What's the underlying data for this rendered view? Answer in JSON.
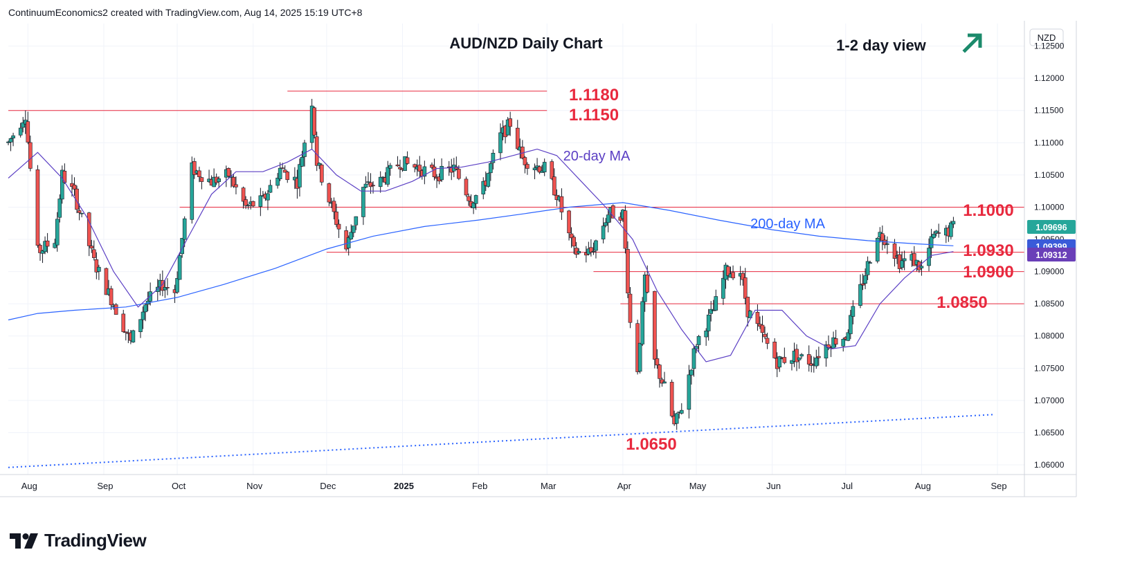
{
  "header": {
    "attribution": "ContinuumEconomics2 created with TradingView.com, Aug 14, 2025 15:19 UTC+8"
  },
  "footer": {
    "brand": "TradingView"
  },
  "chart_data": {
    "type": "candlestick",
    "title": "AUD/NZD Daily Chart",
    "view_label": "1-2 day view",
    "view_direction": "up",
    "currency": "NZD",
    "y_range": [
      1.0585,
      1.1285
    ],
    "y_ticks": [
      "1.06000",
      "1.06500",
      "1.07000",
      "1.07500",
      "1.08000",
      "1.08500",
      "1.09000",
      "1.09500",
      "1.10000",
      "1.10500",
      "1.11000",
      "1.11500",
      "1.12000",
      "1.12500"
    ],
    "x_range": [
      "2024-07-24",
      "2025-09-12"
    ],
    "x_ticks": [
      {
        "label": "Aug",
        "date": "2024-08-01"
      },
      {
        "label": "Sep",
        "date": "2024-09-01"
      },
      {
        "label": "Oct",
        "date": "2024-10-01"
      },
      {
        "label": "Nov",
        "date": "2024-11-01"
      },
      {
        "label": "Dec",
        "date": "2024-12-01"
      },
      {
        "label": "2025",
        "date": "2025-01-01",
        "bold": true
      },
      {
        "label": "Feb",
        "date": "2025-02-01"
      },
      {
        "label": "Mar",
        "date": "2025-03-01"
      },
      {
        "label": "Apr",
        "date": "2025-04-01"
      },
      {
        "label": "May",
        "date": "2025-05-01"
      },
      {
        "label": "Jun",
        "date": "2025-06-01"
      },
      {
        "label": "Jul",
        "date": "2025-07-01"
      },
      {
        "label": "Aug",
        "date": "2025-08-01"
      },
      {
        "label": "Sep",
        "date": "2025-09-01"
      }
    ],
    "price_labels": [
      {
        "text": "1.09696",
        "value": 1.09696,
        "color": "#26a69a"
      },
      {
        "text": "1.09399",
        "value": 1.09399,
        "color": "#3a5bd9"
      },
      {
        "text": "1.09312",
        "value": 1.09312,
        "color": "#6a3fb8"
      }
    ],
    "levels": [
      {
        "label": "1.1180",
        "value": 1.118,
        "from": "2024-11-15",
        "to": "2025-03-01"
      },
      {
        "label": "1.1150",
        "value": 1.115,
        "from": "2024-07-24",
        "to": "2025-03-01"
      },
      {
        "label": "1.1000",
        "value": 1.1,
        "from": "2024-10-02",
        "to": "2025-09-12"
      },
      {
        "label": "1.0930",
        "value": 1.093,
        "from": "2024-12-01",
        "to": "2025-09-12"
      },
      {
        "label": "1.0900",
        "value": 1.09,
        "from": "2025-03-20",
        "to": "2025-09-12"
      },
      {
        "label": "1.0850",
        "value": 1.085,
        "from": "2025-03-31",
        "to": "2025-09-12"
      }
    ],
    "annotations": [
      {
        "text": "20-day MA",
        "color": "#5b3fc4"
      },
      {
        "text": "200-day MA",
        "color": "#2962ff"
      },
      {
        "text": "1.0650",
        "color": "#e8293e"
      }
    ],
    "trendline": {
      "points": [
        {
          "date": "2024-07-24",
          "value": 1.0596
        },
        {
          "date": "2025-08-30",
          "value": 1.0678
        }
      ]
    },
    "colors": {
      "up": "#26a69a",
      "down": "#ef5350",
      "ma20": "#5b3fc4",
      "ma200": "#2962ff",
      "level": "#e8293e",
      "trend": "#2962ff"
    },
    "ma20": [
      [
        "2024-07-24",
        1.1045
      ],
      [
        "2024-08-05",
        1.1085
      ],
      [
        "2024-08-15",
        1.1045
      ],
      [
        "2024-08-25",
        1.0985
      ],
      [
        "2024-09-05",
        1.09
      ],
      [
        "2024-09-15",
        1.0845
      ],
      [
        "2024-09-25",
        1.088
      ],
      [
        "2024-10-05",
        1.095
      ],
      [
        "2024-10-15",
        1.102
      ],
      [
        "2024-10-25",
        1.1055
      ],
      [
        "2024-11-05",
        1.1055
      ],
      [
        "2024-11-15",
        1.107
      ],
      [
        "2024-11-25",
        1.109
      ],
      [
        "2024-12-05",
        1.105
      ],
      [
        "2024-12-15",
        1.1025
      ],
      [
        "2024-12-25",
        1.1025
      ],
      [
        "2025-01-05",
        1.104
      ],
      [
        "2025-01-15",
        1.106
      ],
      [
        "2025-01-25",
        1.1062
      ],
      [
        "2025-02-05",
        1.107
      ],
      [
        "2025-02-15",
        1.108
      ],
      [
        "2025-02-25",
        1.109
      ],
      [
        "2025-03-05",
        1.108
      ],
      [
        "2025-03-15",
        1.104
      ],
      [
        "2025-03-25",
        1.1
      ],
      [
        "2025-04-05",
        1.095
      ],
      [
        "2025-04-15",
        1.087
      ],
      [
        "2025-04-25",
        1.081
      ],
      [
        "2025-05-05",
        1.076
      ],
      [
        "2025-05-15",
        1.077
      ],
      [
        "2025-05-25",
        1.084
      ],
      [
        "2025-06-05",
        1.084
      ],
      [
        "2025-06-15",
        1.08
      ],
      [
        "2025-06-25",
        1.078
      ],
      [
        "2025-07-05",
        1.0785
      ],
      [
        "2025-07-15",
        1.085
      ],
      [
        "2025-07-25",
        1.089
      ],
      [
        "2025-08-05",
        1.0925
      ],
      [
        "2025-08-14",
        1.0931
      ]
    ],
    "ma200": [
      [
        "2024-07-24",
        1.0825
      ],
      [
        "2024-08-05",
        1.0835
      ],
      [
        "2024-08-20",
        1.084
      ],
      [
        "2024-09-10",
        1.0845
      ],
      [
        "2024-10-01",
        1.086
      ],
      [
        "2024-10-20",
        1.088
      ],
      [
        "2024-11-10",
        1.0905
      ],
      [
        "2024-12-01",
        1.0935
      ],
      [
        "2024-12-20",
        1.0955
      ],
      [
        "2025-01-10",
        1.097
      ],
      [
        "2025-02-01",
        1.098
      ],
      [
        "2025-02-20",
        1.099
      ],
      [
        "2025-03-10",
        1.1
      ],
      [
        "2025-04-01",
        1.1007
      ],
      [
        "2025-04-20",
        1.0995
      ],
      [
        "2025-05-10",
        1.098
      ],
      [
        "2025-06-01",
        1.0965
      ],
      [
        "2025-06-20",
        1.0955
      ],
      [
        "2025-07-10",
        1.0948
      ],
      [
        "2025-07-30",
        1.0943
      ],
      [
        "2025-08-14",
        1.094
      ]
    ],
    "price_path": [
      [
        "2024-07-24",
        1.11
      ],
      [
        "2024-07-31",
        1.1145
      ],
      [
        "2024-08-05",
        1.093
      ],
      [
        "2024-08-12",
        1.095
      ],
      [
        "2024-08-15",
        1.105
      ],
      [
        "2024-08-20",
        1.102
      ],
      [
        "2024-08-28",
        1.0915
      ],
      [
        "2024-09-05",
        1.085
      ],
      [
        "2024-09-12",
        1.079
      ],
      [
        "2024-09-18",
        1.085
      ],
      [
        "2024-09-25",
        1.088
      ],
      [
        "2024-09-30",
        1.087
      ],
      [
        "2024-10-07",
        1.106
      ],
      [
        "2024-10-15",
        1.104
      ],
      [
        "2024-10-22",
        1.105
      ],
      [
        "2024-10-29",
        1.1
      ],
      [
        "2024-11-05",
        1.101
      ],
      [
        "2024-11-12",
        1.106
      ],
      [
        "2024-11-19",
        1.104
      ],
      [
        "2024-11-25",
        1.1165
      ],
      [
        "2024-11-27",
        1.107
      ],
      [
        "2024-12-03",
        1.1
      ],
      [
        "2024-12-09",
        1.0935
      ],
      [
        "2024-12-16",
        1.103
      ],
      [
        "2024-12-23",
        1.104
      ],
      [
        "2024-12-31",
        1.107
      ],
      [
        "2025-01-08",
        1.106
      ],
      [
        "2025-01-15",
        1.105
      ],
      [
        "2025-01-22",
        1.106
      ],
      [
        "2025-01-29",
        1.101
      ],
      [
        "2025-02-03",
        1.103
      ],
      [
        "2025-02-10",
        1.111
      ],
      [
        "2025-02-14",
        1.113
      ],
      [
        "2025-02-19",
        1.1075
      ],
      [
        "2025-02-24",
        1.1065
      ],
      [
        "2025-02-28",
        1.106
      ],
      [
        "2025-03-05",
        1.102
      ],
      [
        "2025-03-12",
        1.093
      ],
      [
        "2025-03-19",
        1.093
      ],
      [
        "2025-03-26",
        1.099
      ],
      [
        "2025-04-01",
        1.099
      ],
      [
        "2025-04-04",
        1.082
      ],
      [
        "2025-04-07",
        1.075
      ],
      [
        "2025-04-10",
        1.089
      ],
      [
        "2025-04-14",
        1.076
      ],
      [
        "2025-04-18",
        1.072
      ],
      [
        "2025-04-22",
        1.066
      ],
      [
        "2025-04-25",
        1.069
      ],
      [
        "2025-05-01",
        1.079
      ],
      [
        "2025-05-08",
        1.084
      ],
      [
        "2025-05-13",
        1.09
      ],
      [
        "2025-05-19",
        1.09
      ],
      [
        "2025-05-22",
        1.084
      ],
      [
        "2025-05-28",
        1.08
      ],
      [
        "2025-06-03",
        1.076
      ],
      [
        "2025-06-10",
        1.077
      ],
      [
        "2025-06-17",
        1.076
      ],
      [
        "2025-06-24",
        1.079
      ],
      [
        "2025-07-01",
        1.08
      ],
      [
        "2025-07-08",
        1.0885
      ],
      [
        "2025-07-14",
        1.096
      ],
      [
        "2025-07-18",
        1.095
      ],
      [
        "2025-07-23",
        1.0915
      ],
      [
        "2025-07-28",
        1.092
      ],
      [
        "2025-08-01",
        1.0905
      ],
      [
        "2025-08-06",
        1.0955
      ],
      [
        "2025-08-11",
        1.096
      ],
      [
        "2025-08-14",
        1.097
      ]
    ]
  }
}
